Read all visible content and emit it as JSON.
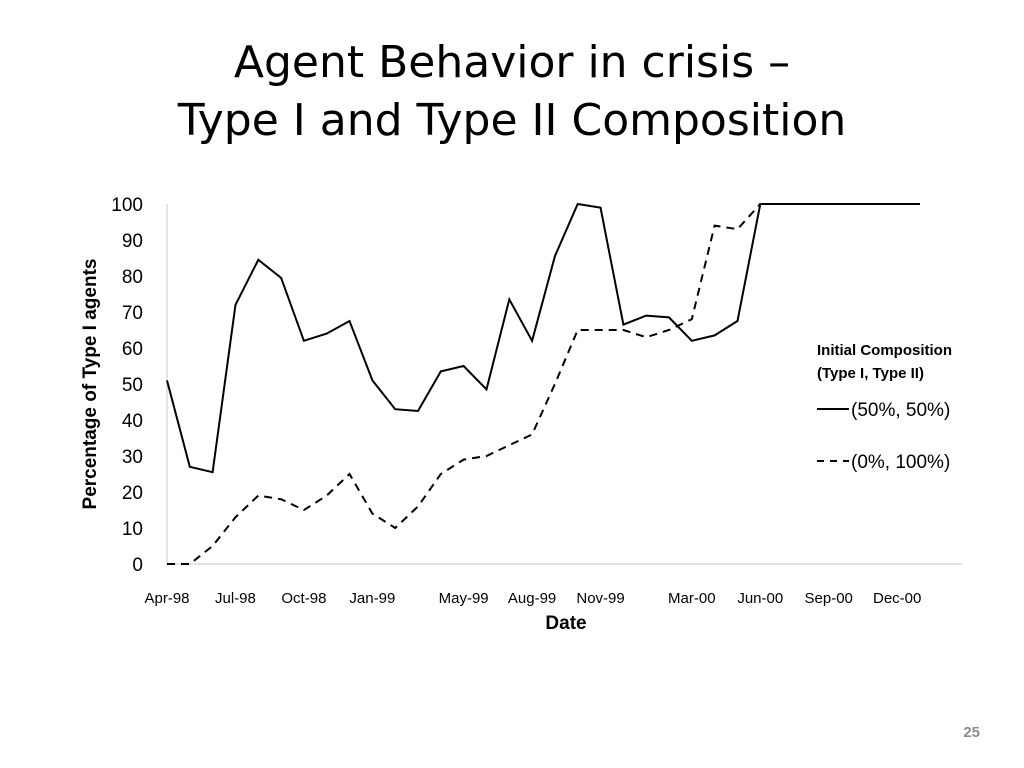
{
  "slide": {
    "title_line1": "Agent Behavior in crisis –",
    "title_line2": "Type I and Type II Composition",
    "page_number": "25"
  },
  "chart_data": {
    "type": "line",
    "xlabel": "Date",
    "ylabel": "Percentage of Type I agents",
    "ylim": [
      0,
      100
    ],
    "yticks": [
      0,
      10,
      20,
      30,
      40,
      50,
      60,
      70,
      80,
      90,
      100
    ],
    "xlim": [
      "1998-04",
      "2001-01"
    ],
    "xtick_labels": [
      "Apr-98",
      "Jul-98",
      "Oct-98",
      "Jan-99",
      "May-99",
      "Aug-99",
      "Nov-99",
      "Mar-00",
      "Jun-00",
      "Sep-00",
      "Dec-00"
    ],
    "xtick_dates": [
      "1998-04",
      "1998-07",
      "1998-10",
      "1999-01",
      "1999-05",
      "1999-08",
      "1999-11",
      "2000-03",
      "2000-06",
      "2000-09",
      "2000-12"
    ],
    "grid": false,
    "legend": {
      "title_line1": "Initial Composition",
      "title_line2": "(Type I, Type II)",
      "placement": "right"
    },
    "series": [
      {
        "name": "(50%, 50%)",
        "style": "solid",
        "color": "#000000",
        "points": [
          [
            "1998-04-01",
            51
          ],
          [
            "1998-05-01",
            27
          ],
          [
            "1998-06-01",
            25.5
          ],
          [
            "1998-07-01",
            72
          ],
          [
            "1998-08-01",
            84.5
          ],
          [
            "1998-09-01",
            79.5
          ],
          [
            "1998-10-01",
            62
          ],
          [
            "1998-11-01",
            64
          ],
          [
            "1998-12-01",
            67.5
          ],
          [
            "1999-01-01",
            51
          ],
          [
            "1999-02-01",
            43
          ],
          [
            "1999-03-01",
            42.5
          ],
          [
            "1999-04-01",
            53.5
          ],
          [
            "1999-05-01",
            55
          ],
          [
            "1999-06-01",
            48.5
          ],
          [
            "1999-07-01",
            73.5
          ],
          [
            "1999-08-01",
            62
          ],
          [
            "1999-09-01",
            85.5
          ],
          [
            "1999-10-01",
            100
          ],
          [
            "1999-11-01",
            99
          ],
          [
            "1999-12-01",
            66.5
          ],
          [
            "2000-01-01",
            69
          ],
          [
            "2000-02-01",
            68.5
          ],
          [
            "2000-03-01",
            62
          ],
          [
            "2000-04-01",
            63.5
          ],
          [
            "2000-05-01",
            67.5
          ],
          [
            "2000-06-01",
            100
          ],
          [
            "2000-07-01",
            100
          ],
          [
            "2000-08-01",
            100
          ],
          [
            "2000-09-01",
            100
          ],
          [
            "2000-10-01",
            100
          ],
          [
            "2000-11-01",
            100
          ],
          [
            "2000-12-01",
            100
          ],
          [
            "2001-01-01",
            100
          ]
        ]
      },
      {
        "name": "(0%, 100%)",
        "style": "dashed",
        "color": "#000000",
        "points": [
          [
            "1998-04-01",
            0
          ],
          [
            "1998-05-01",
            0
          ],
          [
            "1998-06-01",
            5
          ],
          [
            "1998-07-01",
            13
          ],
          [
            "1998-08-01",
            19
          ],
          [
            "1998-09-01",
            18
          ],
          [
            "1998-10-01",
            15
          ],
          [
            "1998-11-01",
            19
          ],
          [
            "1998-12-01",
            25
          ],
          [
            "1999-01-01",
            14
          ],
          [
            "1999-02-01",
            10
          ],
          [
            "1999-03-01",
            16
          ],
          [
            "1999-04-01",
            25
          ],
          [
            "1999-05-01",
            29
          ],
          [
            "1999-06-01",
            30
          ],
          [
            "1999-07-01",
            33
          ],
          [
            "1999-08-01",
            36
          ],
          [
            "1999-09-01",
            50
          ],
          [
            "1999-10-01",
            65
          ],
          [
            "1999-11-01",
            65
          ],
          [
            "1999-12-01",
            65
          ],
          [
            "2000-01-01",
            63
          ],
          [
            "2000-02-01",
            65
          ],
          [
            "2000-03-01",
            68
          ],
          [
            "2000-04-01",
            94
          ],
          [
            "2000-05-01",
            93
          ],
          [
            "2000-06-01",
            100
          ]
        ]
      }
    ]
  }
}
